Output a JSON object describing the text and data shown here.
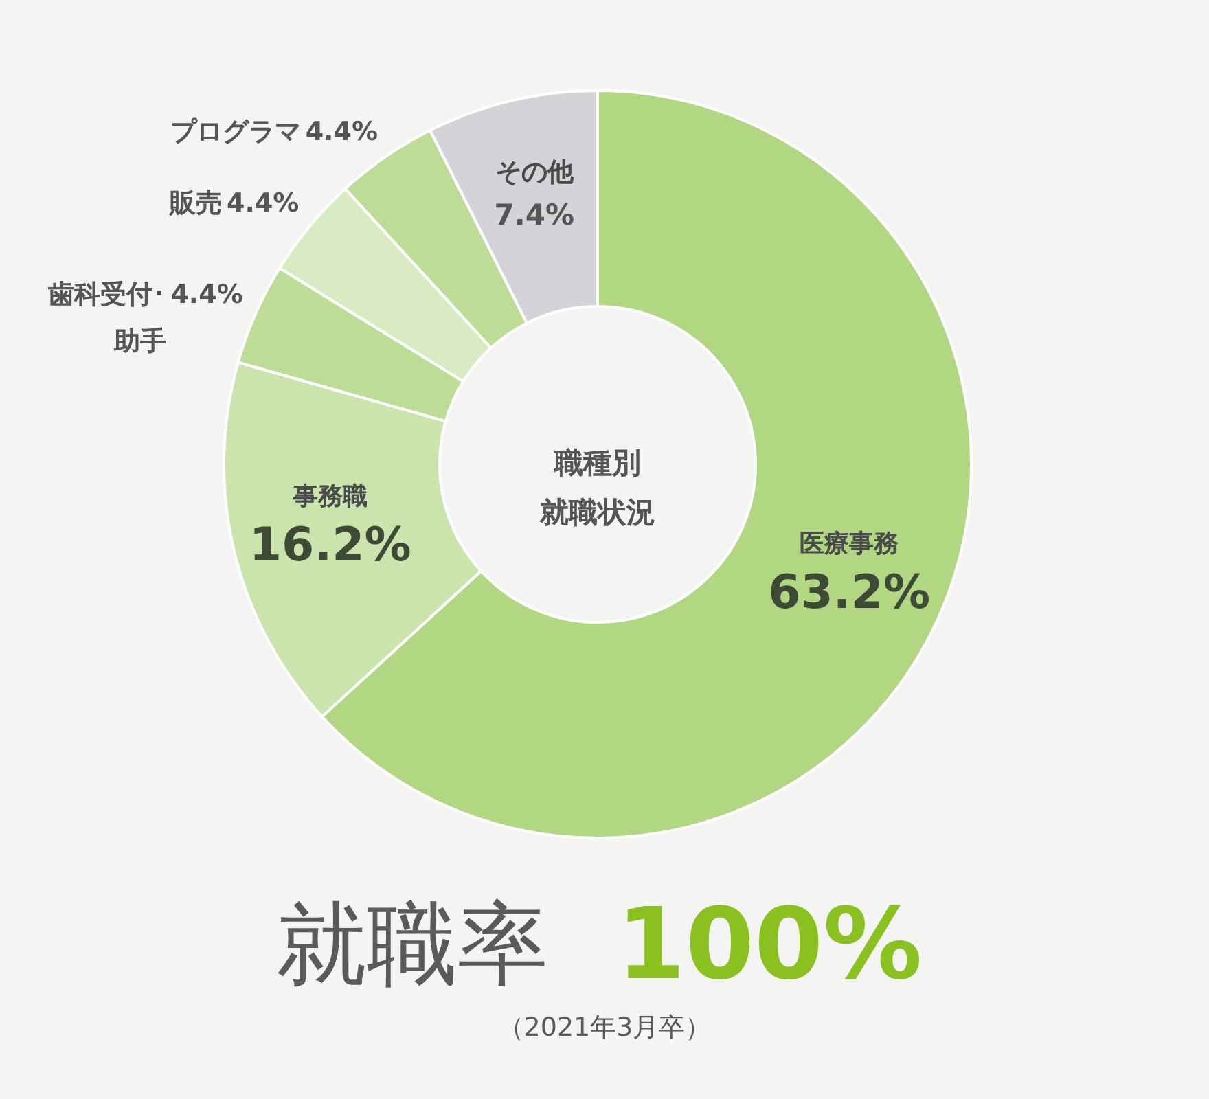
{
  "chart_data": {
    "type": "donut",
    "title": "職種別就職状況",
    "categories": [
      "医療事務",
      "事務職",
      "歯科受付･助手",
      "販売",
      "プログラマ",
      "その他"
    ],
    "values": [
      63.2,
      16.2,
      4.4,
      4.4,
      4.4,
      7.4
    ],
    "colors": [
      "#b1d782",
      "#cbe4ad",
      "#bddc95",
      "#d9ebc3",
      "#bddc95",
      "#d4d4d8"
    ],
    "value_labels": [
      "63.2%",
      "16.2%",
      "4.4%",
      "4.4%",
      "4.4%",
      "7.4%"
    ],
    "annotations": [
      "就職率",
      "100%",
      "（2021年3月卒）"
    ]
  }
}
